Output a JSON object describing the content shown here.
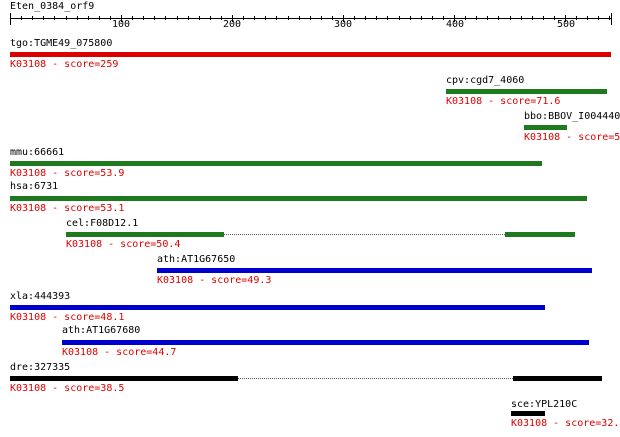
{
  "query": {
    "title": "Eten_0384_orf9"
  },
  "ruler": {
    "ticks": [
      {
        "label": "100"
      },
      {
        "label": "200"
      },
      {
        "label": "300"
      },
      {
        "label": "400"
      },
      {
        "label": "500"
      }
    ]
  },
  "colors": {
    "red": "#dd0000",
    "green": "#1f7a1f",
    "blue": "#0000cc",
    "black": "#000000",
    "score_text": "#dd0000"
  },
  "hits": [
    {
      "name": "tgo:TGME49_075800",
      "score": "K03108 - score=259",
      "color": "red"
    },
    {
      "name": "cpv:cgd7_4060",
      "score": "K03108 - score=71.6",
      "color": "green"
    },
    {
      "name": "bbo:BBOV_I004440",
      "score": "K03108 - score=5",
      "color": "green"
    },
    {
      "name": "mmu:66661",
      "score": "K03108 - score=53.9",
      "color": "green"
    },
    {
      "name": "hsa:6731",
      "score": "K03108 - score=53.1",
      "color": "green"
    },
    {
      "name": "cel:F08D12.1",
      "score": "K03108 - score=50.4",
      "color": "green"
    },
    {
      "name": "ath:AT1G67650",
      "score": "K03108 - score=49.3",
      "color": "blue"
    },
    {
      "name": "xla:444393",
      "score": "K03108 - score=48.1",
      "color": "blue"
    },
    {
      "name": "ath:AT1G67680",
      "score": "K03108 - score=44.7",
      "color": "blue"
    },
    {
      "name": "dre:327335",
      "score": "K03108 - score=38.5",
      "color": "black"
    },
    {
      "name": "sce:YPL210C",
      "score": "K03108 - score=32.",
      "color": "black"
    }
  ]
}
